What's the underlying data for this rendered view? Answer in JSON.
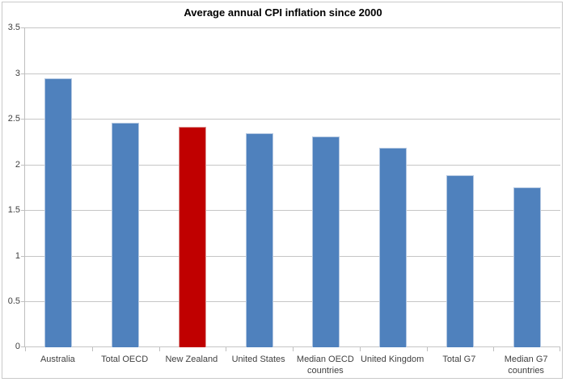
{
  "chart_data": {
    "type": "bar",
    "title": "Average annual CPI inflation since 2000",
    "categories": [
      "Australia",
      "Total OECD",
      "New Zealand",
      "United States",
      "Median OECD countries",
      "United Kingdom",
      "Total G7",
      "Median G7 countries"
    ],
    "values": [
      2.94,
      2.46,
      2.41,
      2.34,
      2.31,
      2.18,
      1.88,
      1.75
    ],
    "xlabel": "",
    "ylabel": "",
    "ylim": [
      0,
      3.5
    ],
    "y_ticks": [
      "3.5",
      "3",
      "2.5",
      "2",
      "1.5",
      "1",
      "0.5",
      "0"
    ],
    "grid": "horizontal",
    "legend_position": "none",
    "highlight_index": 2,
    "colors": {
      "bar": "#4F81BD",
      "bar_border": "#B3C7E1",
      "highlight": "#C00000",
      "highlight_border": "#DD9A98",
      "gridline": "#C6C6C6",
      "axis": "#BFBFBF",
      "label": "#404040",
      "title": "#000000",
      "frame": "#C9C9C9"
    }
  }
}
